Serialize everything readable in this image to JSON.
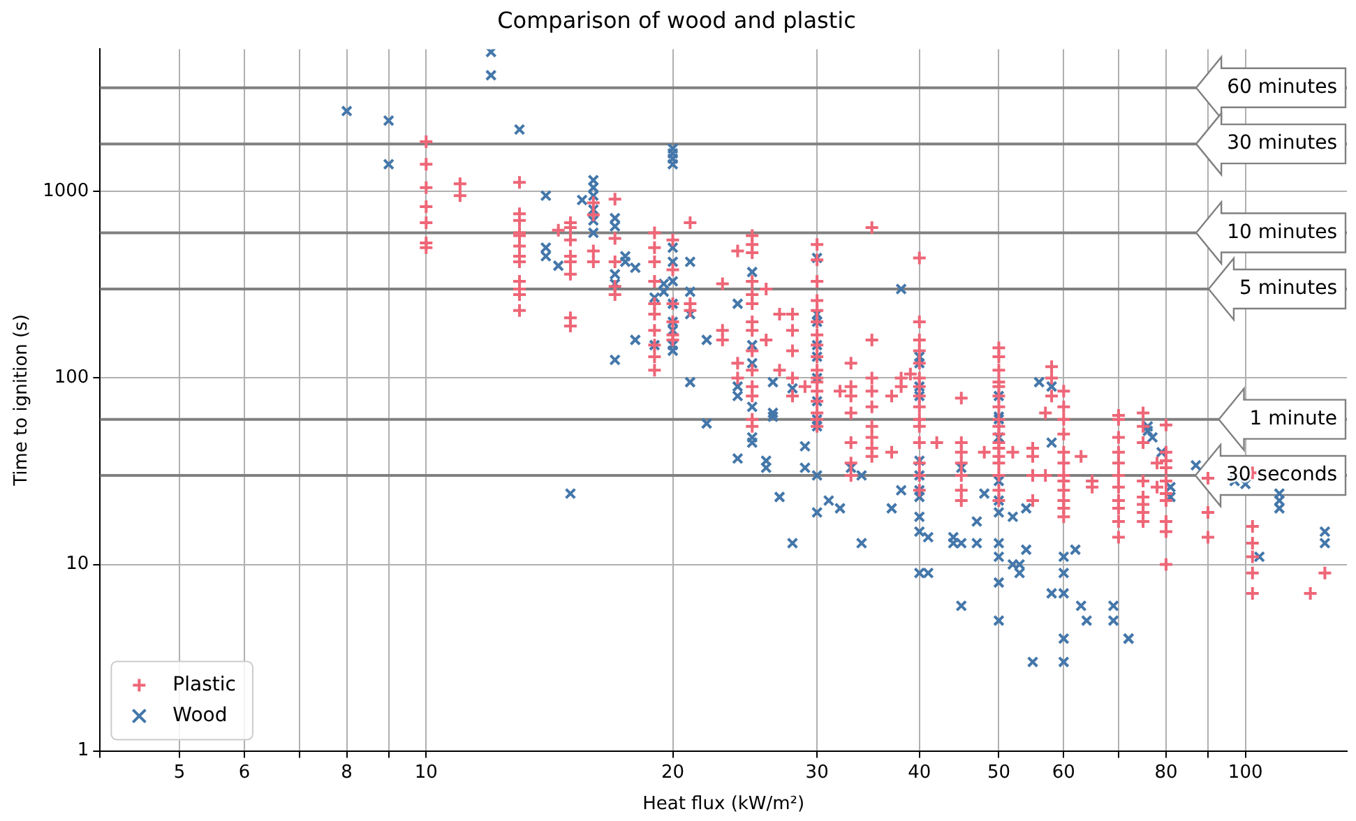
{
  "chart_data": {
    "type": "scatter",
    "title": "Comparison of wood and plastic",
    "xlabel": "Heat flux (kW/m²)",
    "ylabel": "Time to ignition (s)",
    "log": "xy",
    "grid": true,
    "legend": "bottom left",
    "xlim": [
      4,
      133
    ],
    "ylim": [
      1,
      5800
    ],
    "xticks": [
      {
        "value": 4,
        "label": null
      },
      5,
      6,
      {
        "value": 7,
        "label": null
      },
      8,
      {
        "value": 9,
        "label": null
      },
      10,
      20,
      30,
      40,
      50,
      60,
      {
        "value": 70,
        "label": null
      },
      80,
      {
        "value": 90,
        "label": null
      },
      100
    ],
    "yticks": [
      1,
      10,
      100,
      1000
    ],
    "ref_lines": [
      {
        "axis": "y",
        "value": 3600,
        "label": "60 minutes",
        "color": "#808080"
      },
      {
        "axis": "y",
        "value": 1800,
        "label": "30 minutes",
        "color": "#808080"
      },
      {
        "axis": "y",
        "value": 600,
        "label": "10 minutes",
        "color": "#808080"
      },
      {
        "axis": "y",
        "value": 300,
        "label": "5 minutes",
        "color": "#808080"
      },
      {
        "axis": "y",
        "value": 60,
        "label": "1 minute",
        "color": "#808080"
      },
      {
        "axis": "y",
        "value": 30,
        "label": "30 seconds",
        "color": "#808080"
      }
    ],
    "series": [
      {
        "name": "Plastic",
        "color": "#ee6677",
        "marker": "plus",
        "x": [
          10,
          10,
          10,
          10,
          10,
          10,
          10,
          11,
          11,
          13,
          13,
          13,
          13,
          13,
          13,
          13,
          13,
          13,
          13,
          13,
          13,
          14.5,
          15,
          15,
          15,
          15,
          15,
          15,
          15,
          15,
          16,
          16,
          16,
          16,
          17,
          17,
          17,
          17,
          17,
          19,
          19,
          19,
          19,
          19,
          19,
          19,
          19,
          19,
          19,
          20,
          20,
          20,
          20,
          20,
          20,
          21,
          21,
          21,
          23,
          23,
          23,
          24,
          24,
          24,
          25,
          25,
          25,
          25,
          25,
          25,
          25,
          25,
          25,
          25,
          25,
          25,
          25,
          25,
          26,
          26,
          27,
          27,
          28,
          28,
          28,
          28,
          28,
          29,
          30,
          30,
          30,
          30,
          30,
          30,
          30,
          30,
          30,
          30,
          30,
          30,
          30,
          30,
          30,
          30,
          30,
          32,
          33,
          33,
          33,
          33,
          33,
          33,
          33,
          35,
          35,
          35,
          35,
          35,
          35,
          35,
          35,
          35,
          37,
          37,
          38,
          38,
          39,
          40,
          40,
          40,
          40,
          40,
          40,
          40,
          40,
          40,
          40,
          40,
          40,
          40,
          40,
          40,
          42,
          45,
          45,
          45,
          45,
          45,
          45,
          45,
          48,
          50,
          50,
          50,
          50,
          50,
          50,
          50,
          50,
          50,
          50,
          50,
          50,
          50,
          50,
          50,
          50,
          50,
          52,
          55,
          55,
          55,
          55,
          57,
          57,
          58,
          58,
          58,
          60,
          60,
          60,
          60,
          60,
          60,
          60,
          60,
          60,
          60,
          60,
          60,
          63,
          65,
          65,
          70,
          70,
          70,
          70,
          70,
          70,
          70,
          70,
          70,
          70,
          70,
          75,
          75,
          75,
          75,
          75,
          75,
          75,
          75,
          78,
          78,
          80,
          80,
          80,
          80,
          80,
          80,
          80,
          80,
          80,
          80,
          90,
          90,
          90,
          102,
          102,
          102,
          102,
          102,
          102,
          120,
          125
        ],
        "values": [
          1850,
          1400,
          1050,
          830,
          680,
          530,
          500,
          1100,
          950,
          1120,
          760,
          700,
          600,
          580,
          510,
          450,
          420,
          330,
          300,
          280,
          230,
          620,
          680,
          640,
          550,
          450,
          420,
          360,
          210,
          190,
          870,
          750,
          480,
          420,
          910,
          560,
          420,
          310,
          280,
          600,
          500,
          420,
          330,
          250,
          220,
          180,
          150,
          130,
          110,
          550,
          380,
          250,
          200,
          170,
          160,
          680,
          250,
          230,
          320,
          180,
          160,
          480,
          120,
          100,
          580,
          520,
          470,
          330,
          280,
          250,
          200,
          180,
          140,
          110,
          90,
          80,
          60,
          55,
          300,
          160,
          220,
          110,
          220,
          180,
          140,
          100,
          80,
          90,
          520,
          430,
          330,
          260,
          230,
          200,
          170,
          150,
          130,
          110,
          100,
          95,
          85,
          75,
          65,
          60,
          55,
          85,
          120,
          90,
          80,
          65,
          45,
          35,
          30,
          640,
          160,
          100,
          85,
          70,
          55,
          48,
          42,
          38,
          80,
          40,
          100,
          90,
          105,
          440,
          200,
          160,
          140,
          120,
          100,
          90,
          80,
          70,
          60,
          55,
          45,
          35,
          30,
          25,
          45,
          78,
          45,
          40,
          35,
          30,
          25,
          22,
          40,
          145,
          130,
          110,
          95,
          90,
          80,
          70,
          60,
          55,
          50,
          45,
          42,
          38,
          35,
          30,
          25,
          22,
          40,
          42,
          38,
          30,
          22,
          65,
          30,
          115,
          100,
          80,
          85,
          70,
          60,
          50,
          40,
          35,
          30,
          28,
          25,
          22,
          20,
          18,
          38,
          28,
          26,
          63,
          60,
          48,
          40,
          35,
          30,
          26,
          22,
          20,
          17,
          14,
          65,
          55,
          45,
          28,
          23,
          21,
          19,
          17,
          35,
          26,
          56,
          40,
          36,
          33,
          28,
          24,
          22,
          17,
          15,
          10,
          29,
          19,
          14,
          31,
          16,
          13,
          11,
          9,
          7,
          7,
          9
        ]
      },
      {
        "name": "Wood",
        "color": "#4477aa",
        "marker": "cross",
        "x": [
          8,
          9,
          9,
          12,
          12,
          13,
          14,
          14,
          14,
          14.5,
          15,
          15.5,
          16,
          16,
          16,
          16,
          16,
          16,
          17,
          17,
          17,
          17,
          17,
          17.5,
          17.5,
          18,
          18,
          19,
          19,
          19.5,
          19.5,
          20,
          20,
          20,
          20,
          20,
          20,
          20,
          20,
          20,
          20,
          20,
          20,
          21,
          21,
          21,
          21,
          22,
          22,
          24,
          24,
          24,
          24,
          25,
          25,
          25,
          25,
          25,
          25,
          26,
          26,
          26.5,
          26.5,
          26.5,
          27,
          28,
          28,
          29,
          29,
          30,
          30,
          30,
          30,
          30,
          30,
          30,
          30,
          30,
          30,
          30,
          31,
          32,
          33,
          34,
          34,
          37,
          38,
          38,
          40,
          40,
          40,
          40,
          40,
          40,
          40,
          40,
          40,
          40,
          40,
          41,
          41,
          44,
          44,
          45,
          45,
          45,
          47,
          47,
          48,
          50,
          50,
          50,
          50,
          50,
          50,
          50,
          50,
          50,
          50,
          50,
          52,
          52,
          53,
          53,
          54,
          54,
          55,
          56,
          58,
          58,
          58,
          60,
          60,
          60,
          60,
          60,
          62,
          63,
          64,
          69,
          69,
          72,
          72,
          76,
          76,
          77,
          79,
          81,
          81,
          87,
          97,
          100,
          104,
          110,
          110,
          110,
          125,
          125
        ],
        "values": [
          2700,
          2400,
          1400,
          5600,
          4200,
          2150,
          950,
          500,
          450,
          400,
          24,
          900,
          1150,
          1050,
          950,
          800,
          700,
          600,
          720,
          650,
          360,
          320,
          125,
          450,
          420,
          390,
          160,
          270,
          150,
          320,
          290,
          1700,
          1600,
          1500,
          1400,
          500,
          420,
          330,
          250,
          200,
          180,
          150,
          140,
          420,
          290,
          220,
          95,
          160,
          57,
          250,
          90,
          80,
          37,
          370,
          150,
          120,
          70,
          48,
          45,
          36,
          33,
          95,
          65,
          62,
          23,
          88,
          13,
          43,
          33,
          440,
          220,
          200,
          150,
          130,
          100,
          75,
          60,
          55,
          30,
          19,
          22,
          20,
          33,
          30,
          13,
          20,
          300,
          25,
          130,
          120,
          90,
          80,
          36,
          30,
          25,
          23,
          18,
          15,
          9,
          14,
          9,
          14,
          13,
          33,
          13,
          6,
          17,
          13,
          24,
          80,
          62,
          60,
          48,
          28,
          22,
          19,
          13,
          11,
          8,
          5,
          18,
          10,
          10,
          9,
          20,
          12,
          3,
          95,
          90,
          45,
          7,
          11,
          9,
          7,
          4,
          3,
          12,
          6,
          5,
          6,
          5,
          4,
          4,
          55,
          52,
          48,
          40,
          26,
          23,
          34,
          28,
          27,
          11,
          24,
          22,
          20,
          15,
          13
        ]
      }
    ]
  }
}
